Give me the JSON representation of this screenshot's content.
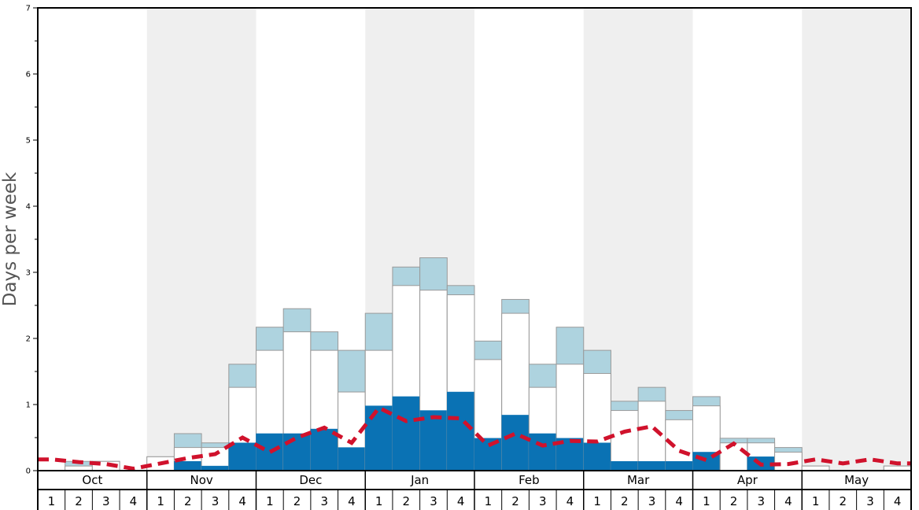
{
  "chart_data": {
    "type": "bar",
    "ylabel": "Days per week",
    "ylim": [
      0,
      7
    ],
    "yticks": [
      "0",
      "1",
      "2",
      "3",
      "4",
      "5",
      "6",
      "7"
    ],
    "months": [
      "Oct",
      "Nov",
      "Dec",
      "Jan",
      "Feb",
      "Mar",
      "Apr",
      "May"
    ],
    "week_labels": [
      "1",
      "2",
      "3",
      "4"
    ],
    "shaded_months": [
      "Nov",
      "Jan",
      "Mar",
      "May"
    ],
    "colors": {
      "lower": "#0a72b4",
      "middle": "#ffffff",
      "upper": "#aed3df",
      "line": "#d0122c",
      "shade": "#efefef"
    },
    "series": [
      {
        "values": [
          0,
          0,
          0,
          0,
          0,
          0.14,
          0.07,
          0.42,
          0.56,
          0.56,
          0.63,
          0.35,
          0.98,
          1.12,
          0.91,
          1.19,
          0.49,
          0.84,
          0.56,
          0.49,
          0.42,
          0.14,
          0.14,
          0.14,
          0.28,
          0,
          0.21,
          0,
          0,
          0,
          0,
          0
        ]
      },
      {
        "values": [
          0,
          0.07,
          0.14,
          0,
          0.21,
          0.35,
          0.35,
          1.26,
          1.82,
          2.1,
          1.82,
          1.19,
          1.82,
          2.8,
          2.73,
          2.66,
          1.68,
          2.38,
          1.26,
          1.61,
          1.47,
          0.91,
          1.05,
          0.77,
          0.98,
          0.42,
          0.42,
          0.28,
          0.07,
          0,
          0,
          0.07
        ]
      },
      {
        "values": [
          0,
          0.14,
          0.14,
          0,
          0.21,
          0.56,
          0.42,
          1.61,
          2.17,
          2.45,
          2.1,
          1.82,
          2.38,
          3.08,
          3.22,
          2.8,
          1.96,
          2.59,
          1.61,
          2.17,
          1.82,
          1.05,
          1.26,
          0.91,
          1.12,
          0.49,
          0.49,
          0.35,
          0.07,
          0,
          0,
          0.07
        ]
      },
      {
        "values": [
          0.17,
          0.13,
          0.1,
          0.03,
          0.11,
          0.19,
          0.25,
          0.5,
          0.28,
          0.5,
          0.65,
          0.42,
          0.95,
          0.75,
          0.81,
          0.79,
          0.38,
          0.56,
          0.38,
          0.45,
          0.44,
          0.59,
          0.67,
          0.3,
          0.16,
          0.41,
          0.09,
          0.1,
          0.17,
          0.11,
          0.17,
          0.11
        ]
      }
    ]
  }
}
